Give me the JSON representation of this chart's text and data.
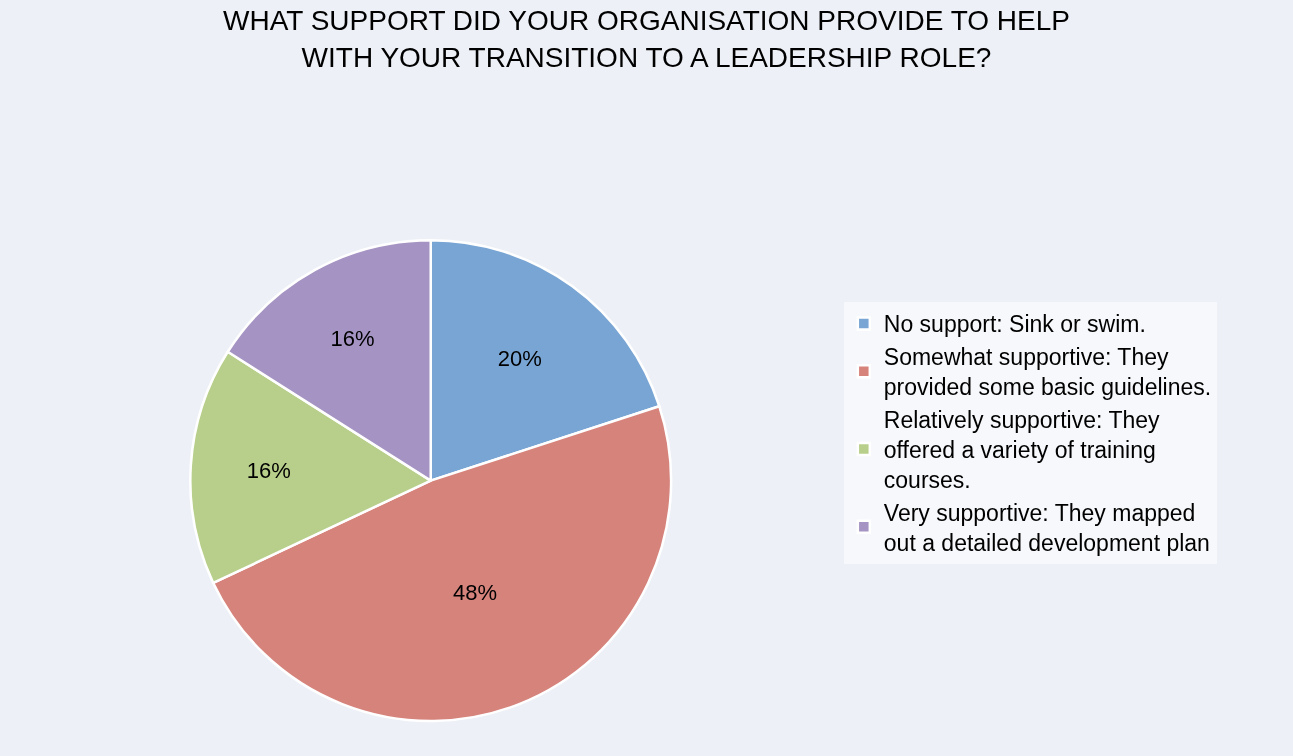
{
  "chart_data": {
    "type": "pie",
    "title": "WHAT SUPPORT DID YOUR ORGANISATION PROVIDE TO HELP WITH YOUR TRANSITION TO A LEADERSHIP ROLE?",
    "categories": [
      "No support: Sink or swim.",
      "Somewhat supportive: They provided some basic guidelines.",
      "Relatively supportive: They offered a variety of training courses.",
      "Very supportive: They mapped out a detailed development plan"
    ],
    "values": [
      20,
      48,
      16,
      16
    ],
    "value_labels": [
      "20%",
      "48%",
      "16%",
      "16%"
    ],
    "colors": [
      "#79a5d4",
      "#d6837c",
      "#b7cf8a",
      "#a594c3"
    ],
    "legend": "right"
  }
}
